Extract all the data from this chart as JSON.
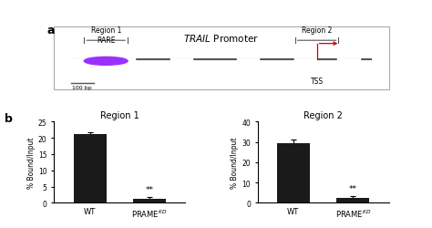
{
  "schematic_title": "TRAIL Promoter",
  "region1_bar_wt": 21.0,
  "region1_bar_wt_err": 0.8,
  "region1_bar_prame": 1.2,
  "region1_bar_prame_err": 0.7,
  "region1_ylim": [
    0,
    25
  ],
  "region1_yticks": [
    0,
    5,
    10,
    15,
    20,
    25
  ],
  "region1_title": "Region 1",
  "region2_bar_wt": 29.5,
  "region2_bar_wt_err": 1.5,
  "region2_bar_prame": 2.5,
  "region2_bar_prame_err": 0.8,
  "region2_ylim": [
    0,
    40
  ],
  "region2_yticks": [
    0,
    10,
    20,
    30,
    40
  ],
  "region2_title": "Region 2",
  "bar_color": "#1a1a1a",
  "ylabel": "% Bound/Input",
  "x_labels": [
    "WT",
    "PRAME$^{KD}$"
  ],
  "sig_text": "**",
  "panel_b_label": "b",
  "panel_a_label": "a",
  "bg_color": "#ffffff",
  "schematic_line_color": "#555555",
  "rare_circle_color": "#9b30ff",
  "tss_arrow_color": "#cc0000",
  "region1_bracket_color": "#555555",
  "region2_bracket_color": "#555555",
  "scale_bar_label": "100 bp"
}
